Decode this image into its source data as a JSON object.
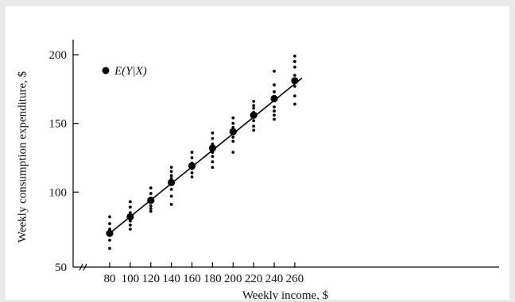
{
  "chart_data": {
    "type": "scatter",
    "xlabel": "Weekly income, $",
    "ylabel": "Weekly consumption expenditure, $",
    "legend": {
      "label": "E(Y|X)",
      "placement": "top-left"
    },
    "xlim": [
      80,
      260
    ],
    "ylim": [
      50,
      200
    ],
    "x_ticks": [
      80,
      100,
      120,
      140,
      160,
      180,
      200,
      220,
      240,
      260
    ],
    "y_ticks": [
      50,
      100,
      150,
      200
    ],
    "axis_break": true,
    "grid": false,
    "series": [
      {
        "name": "E(Y|X)",
        "kind": "conditional_means",
        "points": [
          {
            "x": 80,
            "y": 70
          },
          {
            "x": 100,
            "y": 82
          },
          {
            "x": 120,
            "y": 94
          },
          {
            "x": 140,
            "y": 107
          },
          {
            "x": 160,
            "y": 119
          },
          {
            "x": 180,
            "y": 132
          },
          {
            "x": 200,
            "y": 144
          },
          {
            "x": 220,
            "y": 156
          },
          {
            "x": 240,
            "y": 168
          },
          {
            "x": 260,
            "y": 181
          }
        ]
      },
      {
        "kind": "observations",
        "points": [
          {
            "x": 80,
            "y": 82
          },
          {
            "x": 80,
            "y": 77
          },
          {
            "x": 80,
            "y": 73
          },
          {
            "x": 80,
            "y": 65
          },
          {
            "x": 80,
            "y": 59
          },
          {
            "x": 100,
            "y": 93
          },
          {
            "x": 100,
            "y": 89
          },
          {
            "x": 100,
            "y": 85
          },
          {
            "x": 100,
            "y": 79
          },
          {
            "x": 100,
            "y": 76
          },
          {
            "x": 100,
            "y": 73
          },
          {
            "x": 120,
            "y": 103
          },
          {
            "x": 120,
            "y": 99
          },
          {
            "x": 120,
            "y": 90
          },
          {
            "x": 120,
            "y": 88
          },
          {
            "x": 120,
            "y": 86
          },
          {
            "x": 140,
            "y": 118
          },
          {
            "x": 140,
            "y": 115
          },
          {
            "x": 140,
            "y": 112
          },
          {
            "x": 140,
            "y": 110
          },
          {
            "x": 140,
            "y": 102
          },
          {
            "x": 140,
            "y": 97
          },
          {
            "x": 140,
            "y": 91
          },
          {
            "x": 160,
            "y": 129
          },
          {
            "x": 160,
            "y": 125
          },
          {
            "x": 160,
            "y": 121
          },
          {
            "x": 160,
            "y": 117
          },
          {
            "x": 160,
            "y": 114
          },
          {
            "x": 160,
            "y": 111
          },
          {
            "x": 180,
            "y": 143
          },
          {
            "x": 180,
            "y": 139
          },
          {
            "x": 180,
            "y": 135
          },
          {
            "x": 180,
            "y": 129
          },
          {
            "x": 180,
            "y": 126
          },
          {
            "x": 180,
            "y": 122
          },
          {
            "x": 180,
            "y": 118
          },
          {
            "x": 200,
            "y": 154
          },
          {
            "x": 200,
            "y": 150
          },
          {
            "x": 200,
            "y": 147
          },
          {
            "x": 200,
            "y": 140
          },
          {
            "x": 200,
            "y": 137
          },
          {
            "x": 200,
            "y": 129
          },
          {
            "x": 220,
            "y": 166
          },
          {
            "x": 220,
            "y": 163
          },
          {
            "x": 220,
            "y": 161
          },
          {
            "x": 220,
            "y": 158
          },
          {
            "x": 220,
            "y": 152
          },
          {
            "x": 220,
            "y": 148
          },
          {
            "x": 220,
            "y": 145
          },
          {
            "x": 240,
            "y": 188
          },
          {
            "x": 240,
            "y": 178
          },
          {
            "x": 240,
            "y": 173
          },
          {
            "x": 240,
            "y": 162
          },
          {
            "x": 240,
            "y": 159
          },
          {
            "x": 240,
            "y": 156
          },
          {
            "x": 240,
            "y": 153
          },
          {
            "x": 260,
            "y": 199
          },
          {
            "x": 260,
            "y": 195
          },
          {
            "x": 260,
            "y": 191
          },
          {
            "x": 260,
            "y": 185
          },
          {
            "x": 260,
            "y": 177
          },
          {
            "x": 260,
            "y": 170
          },
          {
            "x": 260,
            "y": 164
          }
        ]
      },
      {
        "kind": "line",
        "points": [
          {
            "x": 80,
            "y": 70
          },
          {
            "x": 267,
            "y": 183
          }
        ]
      }
    ]
  }
}
